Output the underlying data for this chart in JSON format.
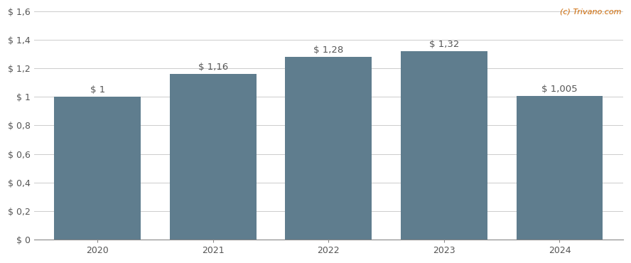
{
  "categories": [
    "2020",
    "2021",
    "2022",
    "2023",
    "2024"
  ],
  "values": [
    1.0,
    1.16,
    1.28,
    1.32,
    1.005
  ],
  "bar_labels": [
    "$ 1",
    "$ 1,16",
    "$ 1,28",
    "$ 1,32",
    "$ 1,005"
  ],
  "bar_color": "#5f7d8e",
  "background_color": "#ffffff",
  "ylim": [
    0,
    1.6
  ],
  "yticks": [
    0,
    0.2,
    0.4,
    0.6,
    0.8,
    1.0,
    1.2,
    1.4,
    1.6
  ],
  "ytick_labels": [
    "$ 0",
    "$ 0,2",
    "$ 0,4",
    "$ 0,6",
    "$ 0,8",
    "$ 1",
    "$ 1,2",
    "$ 1,4",
    "$ 1,6"
  ],
  "watermark": "(c) Trivano.com",
  "watermark_color": "#cc6600",
  "grid_color": "#cccccc",
  "bar_label_color": "#555555",
  "bar_label_fontsize": 9.5,
  "axis_tick_fontsize": 9,
  "bar_width": 0.75,
  "figsize": [
    8.88,
    3.7
  ],
  "dpi": 100
}
